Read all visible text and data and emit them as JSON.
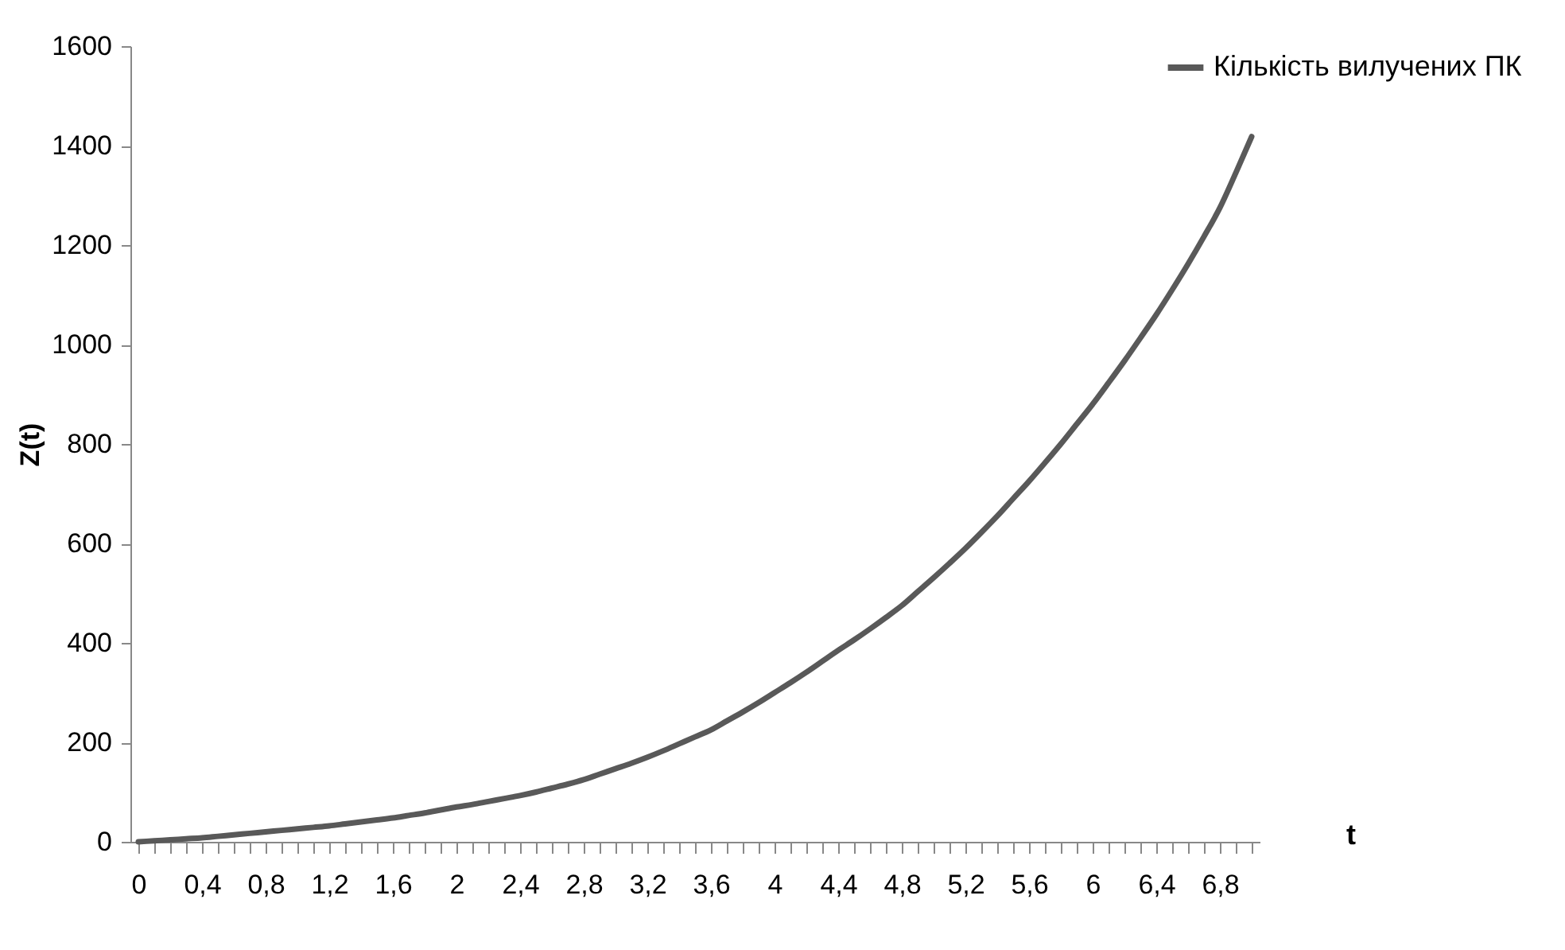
{
  "chart_data": {
    "type": "line",
    "xlabel": "t",
    "ylabel": "Z(t)",
    "categories": [
      "0",
      null,
      null,
      null,
      "0,4",
      null,
      null,
      null,
      "0,8",
      null,
      null,
      null,
      "1,2",
      null,
      null,
      null,
      "1,6",
      null,
      null,
      null,
      "2",
      null,
      null,
      null,
      "2,4",
      null,
      null,
      null,
      "2,8",
      null,
      null,
      null,
      "3,2",
      null,
      null,
      null,
      "3,6",
      null,
      null,
      null,
      "4",
      null,
      null,
      null,
      "4,4",
      null,
      null,
      null,
      "4,8",
      null,
      null,
      null,
      "5,2",
      null,
      null,
      null,
      "5,6",
      null,
      null,
      null,
      "6",
      null,
      null,
      null,
      "6,4",
      null,
      null,
      null,
      "6,8",
      null,
      null
    ],
    "series": [
      {
        "name": "Кількість вилучених ПК",
        "color": "#595959",
        "values": [
          0,
          2,
          4,
          6,
          8,
          11,
          14,
          17,
          20,
          23,
          26,
          29,
          32,
          36,
          40,
          44,
          48,
          53,
          58,
          64,
          70,
          75,
          81,
          87,
          93,
          100,
          108,
          116,
          125,
          136,
          147,
          158,
          170,
          183,
          197,
          211,
          225,
          243,
          261,
          280,
          300,
          320,
          341,
          363,
          385,
          406,
          428,
          451,
          475,
          503,
          531,
          560,
          590,
          622,
          655,
          690,
          725,
          762,
          800,
          840,
          880,
          923,
          967,
          1013,
          1060,
          1110,
          1162,
          1217,
          1275,
          1345,
          1418
        ]
      }
    ],
    "ylim": [
      0,
      1600
    ],
    "yticks": [
      0,
      200,
      400,
      600,
      800,
      1000,
      1200,
      1400,
      1600
    ],
    "legend": "right",
    "marker": "none",
    "line_style": "solid"
  }
}
